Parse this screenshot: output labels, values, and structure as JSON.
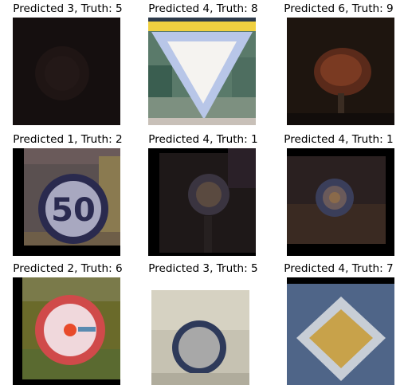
{
  "chart_data": {
    "type": "image-grid",
    "rows": 3,
    "cols": 3,
    "panels": [
      {
        "title": "Predicted 3, Truth: 5",
        "predicted": 3,
        "truth": 5,
        "icon": "dark-round-sign-icon"
      },
      {
        "title": "Predicted 4, Truth: 8",
        "predicted": 4,
        "truth": 8,
        "icon": "yield-sign-icon"
      },
      {
        "title": "Predicted 6, Truth: 9",
        "predicted": 6,
        "truth": 9,
        "icon": "blurred-red-round-sign-icon"
      },
      {
        "title": "Predicted 1, Truth: 2",
        "predicted": 1,
        "truth": 2,
        "icon": "speed-limit-50-sign-icon",
        "sign_text": "50"
      },
      {
        "title": "Predicted 4, Truth: 1",
        "predicted": 4,
        "truth": 1,
        "icon": "dark-round-sign-icon"
      },
      {
        "title": "Predicted 4, Truth: 1",
        "predicted": 4,
        "truth": 1,
        "icon": "dark-round-sign-icon"
      },
      {
        "title": "Predicted 2, Truth: 6",
        "predicted": 2,
        "truth": 6,
        "icon": "red-ring-sign-icon"
      },
      {
        "title": "Predicted 3, Truth: 5",
        "predicted": 3,
        "truth": 5,
        "icon": "round-sign-icon"
      },
      {
        "title": "Predicted 4, Truth: 7",
        "predicted": 4,
        "truth": 7,
        "icon": "priority-road-diamond-sign-icon"
      }
    ]
  }
}
